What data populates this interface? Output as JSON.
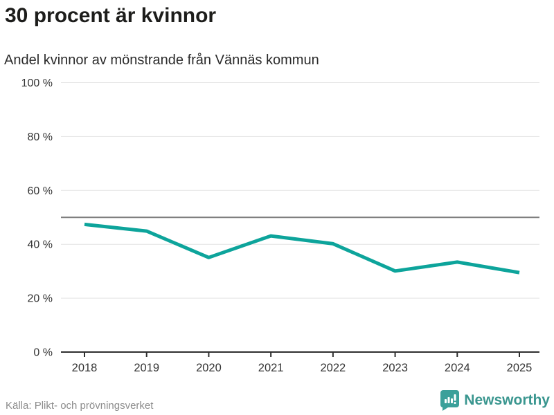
{
  "header": {
    "title": "30 procent är kvinnor",
    "subtitle": "Andel kvinnor av mönstrande från Vännäs kommun"
  },
  "chart_data": {
    "type": "line",
    "title": "30 procent är kvinnor",
    "subtitle": "Andel kvinnor av mönstrande från Vännäs kommun",
    "categories": [
      "2018",
      "2019",
      "2020",
      "2021",
      "2022",
      "2023",
      "2024",
      "2025"
    ],
    "series": [
      {
        "name": "Andel kvinnor av mönstrande",
        "values": [
          47.4,
          44.9,
          35.1,
          43.1,
          40.2,
          30.1,
          33.4,
          29.5
        ]
      }
    ],
    "xlabel": "",
    "ylabel": "",
    "ylim": [
      0,
      100
    ],
    "yticks": [
      0,
      20,
      40,
      60,
      80,
      100
    ],
    "ytick_labels": [
      "0 %",
      "20 %",
      "40 %",
      "60 %",
      "80 %",
      "100 %"
    ],
    "reference_line": 50,
    "grid": "horizontal",
    "legend": "none",
    "line_color": "#0da49b",
    "reference_color": "#7f7f7f",
    "grid_color": "#e3e3e3",
    "axis_color": "#2e2e2e",
    "tick_label_color": "#333333"
  },
  "footer": {
    "source": "Källa: Plikt- och prövningsverket",
    "brand": "Newsworthy"
  },
  "colors": {
    "accent_teal": "#0da49b",
    "brand_teal": "#3a968f",
    "logo_teal": "#3ba09a",
    "title_text": "#1d1d1b",
    "muted_text": "#8c8c8c"
  }
}
